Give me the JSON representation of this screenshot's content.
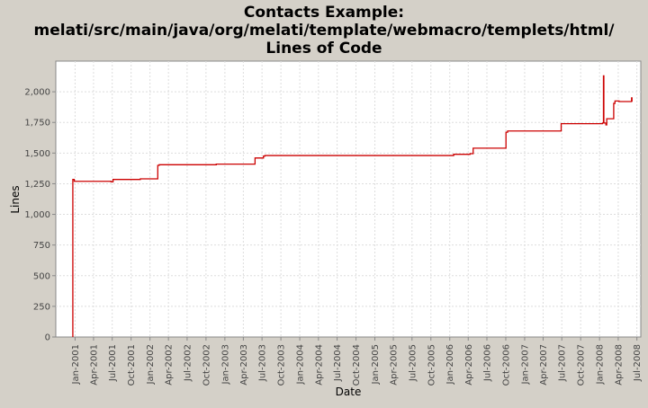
{
  "chart_data": {
    "type": "line",
    "title_lines": [
      "Contacts Example:",
      "melati/src/main/java/org/melati/template/webmacro/templets/html/",
      "Lines of Code"
    ],
    "xlabel": "Date",
    "ylabel": "Lines",
    "ylim": [
      0,
      2250
    ],
    "y_ticks": [
      0,
      250,
      500,
      750,
      1000,
      1250,
      1500,
      1750,
      2000
    ],
    "y_tick_labels": [
      "0",
      "250",
      "500",
      "750",
      "1,000",
      "1,250",
      "1,500",
      "1,750",
      "2,000"
    ],
    "xlim": [
      "2000-09-29",
      "2008-07-20"
    ],
    "x_ticks": [
      "2001-01-01",
      "2001-04-01",
      "2001-07-01",
      "2001-10-01",
      "2002-01-01",
      "2002-04-01",
      "2002-07-01",
      "2002-10-01",
      "2003-01-01",
      "2003-04-01",
      "2003-07-01",
      "2003-10-01",
      "2004-01-01",
      "2004-04-01",
      "2004-07-01",
      "2004-10-01",
      "2005-01-01",
      "2005-04-01",
      "2005-07-01",
      "2005-10-01",
      "2006-01-01",
      "2006-04-01",
      "2006-07-01",
      "2006-10-01",
      "2007-01-01",
      "2007-04-01",
      "2007-07-01",
      "2007-10-01",
      "2008-01-01",
      "2008-04-01",
      "2008-07-01"
    ],
    "x_tick_labels": [
      "Jan-2001",
      "Apr-2001",
      "Jul-2001",
      "Oct-2001",
      "Jan-2002",
      "Apr-2002",
      "Jul-2002",
      "Oct-2002",
      "Jan-2003",
      "Apr-2003",
      "Jul-2003",
      "Oct-2003",
      "Jan-2004",
      "Apr-2004",
      "Jul-2004",
      "Oct-2004",
      "Jan-2005",
      "Apr-2005",
      "Jul-2005",
      "Oct-2005",
      "Jan-2006",
      "Apr-2006",
      "Jul-2006",
      "Oct-2006",
      "Jan-2007",
      "Apr-2007",
      "Jul-2007",
      "Oct-2007",
      "Jan-2008",
      "Apr-2008",
      "Jul-2008"
    ],
    "grid": true,
    "series": [
      {
        "color": "#cc0000",
        "step": true,
        "points": [
          [
            "2000-12-21",
            0
          ],
          [
            "2000-12-21",
            1285
          ],
          [
            "2000-12-28",
            1270
          ],
          [
            "2001-06-25",
            1265
          ],
          [
            "2001-07-05",
            1285
          ],
          [
            "2001-11-15",
            1290
          ],
          [
            "2002-02-08",
            1400
          ],
          [
            "2002-02-15",
            1405
          ],
          [
            "2002-11-20",
            1410
          ],
          [
            "2003-05-28",
            1460
          ],
          [
            "2003-07-08",
            1475
          ],
          [
            "2003-07-15",
            1480
          ],
          [
            "2006-01-20",
            1490
          ],
          [
            "2006-04-10",
            1495
          ],
          [
            "2006-04-25",
            1540
          ],
          [
            "2006-10-02",
            1670
          ],
          [
            "2006-10-10",
            1680
          ],
          [
            "2007-06-28",
            1740
          ],
          [
            "2008-01-15",
            1745
          ],
          [
            "2008-01-20",
            2130
          ],
          [
            "2008-01-22",
            1745
          ],
          [
            "2008-02-01",
            1730
          ],
          [
            "2008-02-05",
            1780
          ],
          [
            "2008-03-10",
            1905
          ],
          [
            "2008-03-16",
            1925
          ],
          [
            "2008-04-05",
            1920
          ],
          [
            "2008-06-05",
            1950
          ],
          [
            "2008-06-07",
            1920
          ],
          [
            "2008-06-08",
            1920
          ]
        ]
      }
    ]
  }
}
